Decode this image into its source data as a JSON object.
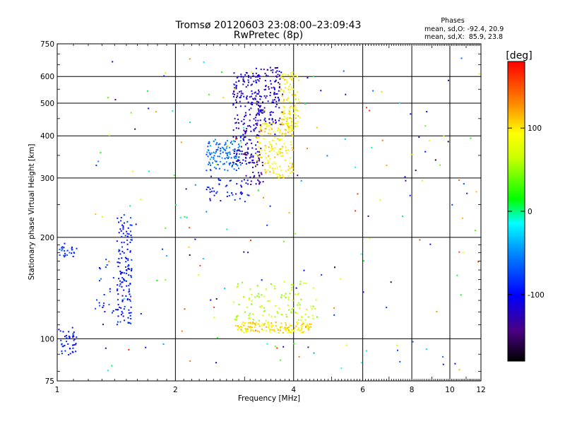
{
  "chart_data": {
    "type": "scatter",
    "title": "Tromsø 20120603 23:08:00–23:09:43",
    "subtitle": "RwPretec (8p)",
    "xlabel": "Frequency [MHz]",
    "ylabel": "Stationary phase Virtual Height [km]",
    "x_scale": "log",
    "y_scale": "log",
    "xlim": [
      1,
      12
    ],
    "ylim": [
      75,
      750
    ],
    "x_ticks": [
      1,
      2,
      4,
      6,
      8,
      10,
      12
    ],
    "y_ticks": [
      75,
      100,
      200,
      300,
      400,
      500,
      600,
      750
    ],
    "grid": true,
    "colorbar": {
      "label": "[deg]",
      "ticks": [
        100,
        0,
        -100
      ],
      "range": [
        -180,
        180
      ]
    },
    "annotation": {
      "title": "Phases",
      "lines": [
        "mean, sd,O: -92.4, 20.9",
        "mean, sd,X:  85.9, 23.8"
      ]
    },
    "clusters": [
      {
        "name": "low-blue-1",
        "x": [
          1.0,
          1.12
        ],
        "y": [
          88,
          108
        ],
        "phase": -95,
        "n": 45
      },
      {
        "name": "oblique-blue",
        "x": [
          1.0,
          1.13
        ],
        "y": [
          175,
          192
        ],
        "phase": -85,
        "n": 25
      },
      {
        "name": "rise-blue",
        "x": [
          1.25,
          1.55
        ],
        "y": [
          118,
          175
        ],
        "phase": -90,
        "n": 45
      },
      {
        "name": "trace-blue",
        "x": [
          1.42,
          1.55
        ],
        "y": [
          110,
          235
        ],
        "phase": -95,
        "n": 120
      },
      {
        "name": "F-cyan",
        "x": [
          2.4,
          2.95
        ],
        "y": [
          315,
          390
        ],
        "phase": -60,
        "n": 120
      },
      {
        "name": "F-blue-low",
        "x": [
          2.4,
          3.1
        ],
        "y": [
          255,
          300
        ],
        "phase": -95,
        "n": 45
      },
      {
        "name": "F-navy",
        "x": [
          2.8,
          3.3
        ],
        "y": [
          330,
          620
        ],
        "phase": -118,
        "n": 210
      },
      {
        "name": "F-navy-top",
        "x": [
          3.2,
          3.75
        ],
        "y": [
          430,
          640
        ],
        "phase": -120,
        "n": 130
      },
      {
        "name": "F-purple",
        "x": [
          3.0,
          3.35
        ],
        "y": [
          285,
          360
        ],
        "phase": -135,
        "n": 40
      },
      {
        "name": "F-yellow",
        "x": [
          3.2,
          4.0
        ],
        "y": [
          300,
          440
        ],
        "phase": 100,
        "n": 180
      },
      {
        "name": "F-yellow-top",
        "x": [
          3.7,
          4.15
        ],
        "y": [
          420,
          620
        ],
        "phase": 95,
        "n": 110
      },
      {
        "name": "E-yellow",
        "x": [
          2.85,
          4.45
        ],
        "y": [
          104,
          112
        ],
        "phase": 100,
        "n": 150
      },
      {
        "name": "E-mixed",
        "x": [
          2.8,
          4.6
        ],
        "y": [
          113,
          148
        ],
        "phase": 60,
        "n": 110
      },
      {
        "name": "sparse",
        "x": [
          1.25,
          11.9
        ],
        "y": [
          80,
          700
        ],
        "phase": 0,
        "n": 200
      }
    ]
  }
}
